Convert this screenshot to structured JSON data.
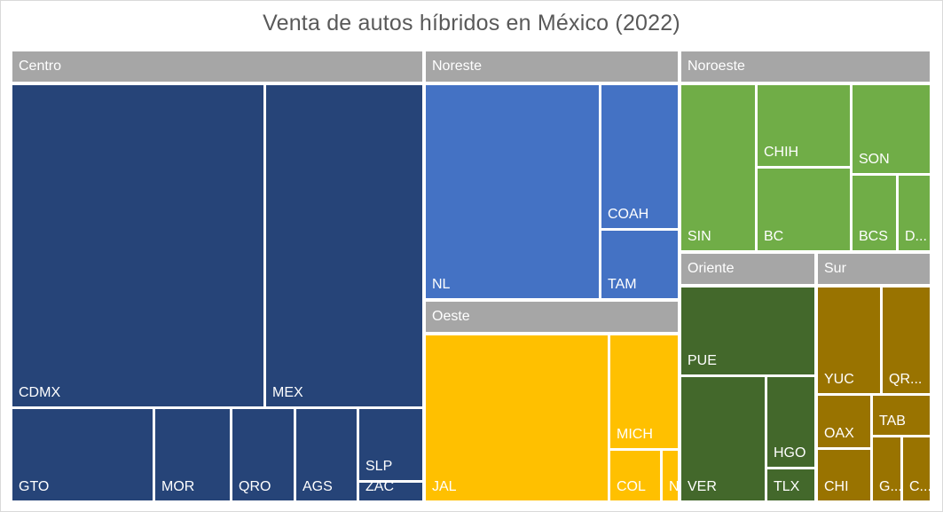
{
  "chart_data": {
    "type": "treemap",
    "title": "Venta de autos híbridos en México (2022)",
    "legend": "none",
    "colors": {
      "Centro": "#264478",
      "Noreste": "#4472c4",
      "Noroeste": "#70ad47",
      "Oeste": "#ffc000",
      "Oriente": "#43682b",
      "Sur": "#997300",
      "header": "#a6a6a6"
    },
    "groups": [
      {
        "name": "Centro",
        "items": [
          {
            "label": "CDMX"
          },
          {
            "label": "MEX"
          },
          {
            "label": "GTO"
          },
          {
            "label": "MOR"
          },
          {
            "label": "QRO"
          },
          {
            "label": "AGS"
          },
          {
            "label": "SLP"
          },
          {
            "label": "ZAC"
          }
        ]
      },
      {
        "name": "Noreste",
        "items": [
          {
            "label": "NL"
          },
          {
            "label": "COAH"
          },
          {
            "label": "TAM"
          }
        ]
      },
      {
        "name": "Noroeste",
        "items": [
          {
            "label": "SIN"
          },
          {
            "label": "CHIH"
          },
          {
            "label": "BC"
          },
          {
            "label": "SON"
          },
          {
            "label": "BCS"
          },
          {
            "label": "D..."
          }
        ]
      },
      {
        "name": "Oeste",
        "items": [
          {
            "label": "JAL"
          },
          {
            "label": "MICH"
          },
          {
            "label": "COL"
          },
          {
            "label": "N..."
          }
        ]
      },
      {
        "name": "Oriente",
        "items": [
          {
            "label": "PUE"
          },
          {
            "label": "VER"
          },
          {
            "label": "HGO"
          },
          {
            "label": "TLX"
          }
        ]
      },
      {
        "name": "Sur",
        "items": [
          {
            "label": "YUC"
          },
          {
            "label": "QR..."
          },
          {
            "label": "OAX"
          },
          {
            "label": "TAB"
          },
          {
            "label": "CHI"
          },
          {
            "label": "G..."
          },
          {
            "label": "C..."
          }
        ]
      }
    ]
  }
}
